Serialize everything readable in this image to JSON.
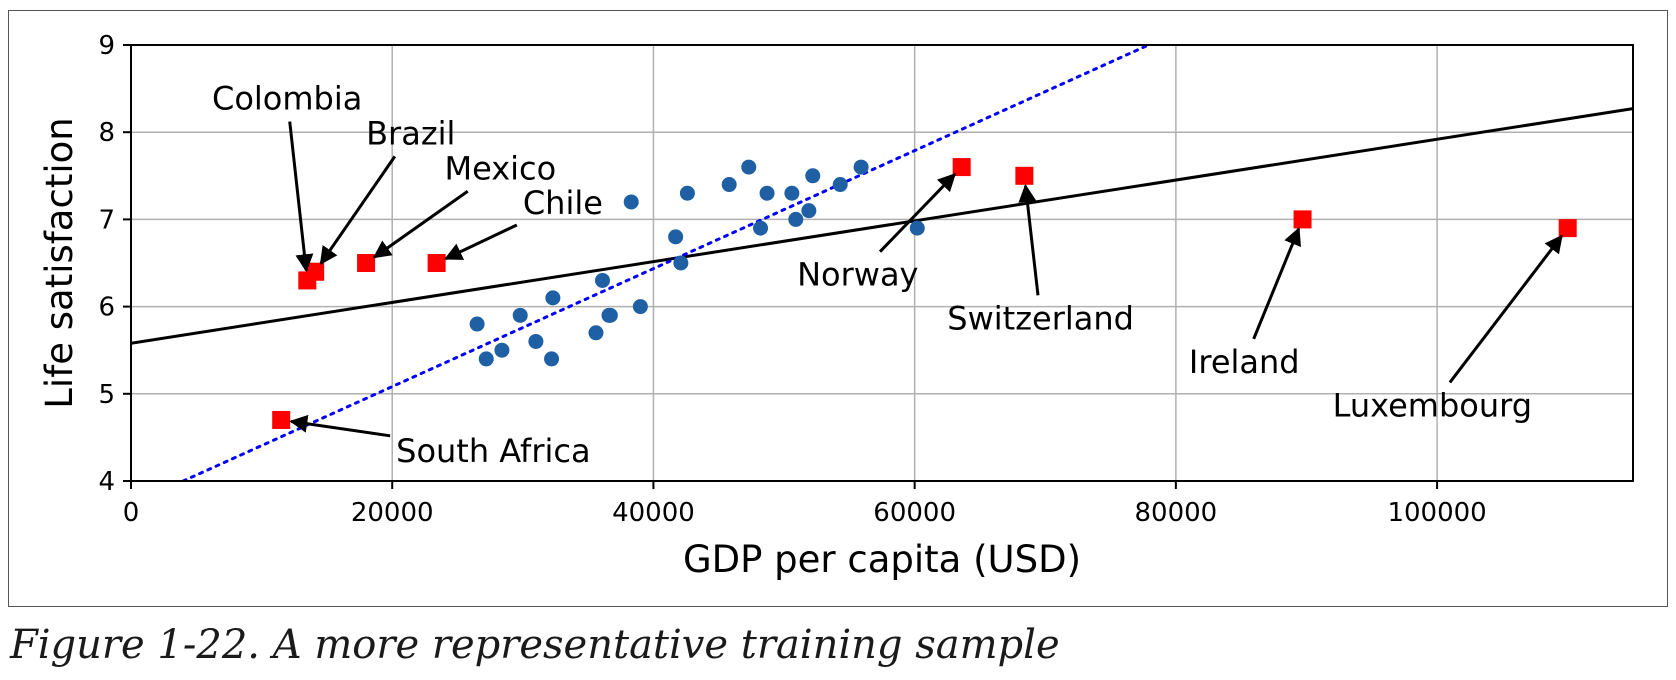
{
  "caption": "Figure 1-22. A more representative training sample",
  "colors": {
    "sample_points": "#1f5fa3",
    "added_points": "#ff0000",
    "full_model_line": "#000000",
    "partial_model_line": "#0000ff",
    "grid": "#b0b0b0"
  },
  "chart_data": {
    "type": "scatter",
    "title": "",
    "xlabel": "GDP per capita (USD)",
    "ylabel": "Life satisfaction",
    "xlim": [
      0,
      115000
    ],
    "ylim": [
      4,
      9
    ],
    "xticks": [
      0,
      20000,
      40000,
      60000,
      80000,
      100000
    ],
    "xtick_labels": [
      "0",
      "20000",
      "40000",
      "60000",
      "80000",
      "100000"
    ],
    "yticks": [
      4,
      5,
      6,
      7,
      8,
      9
    ],
    "ytick_labels": [
      "4",
      "5",
      "6",
      "7",
      "8",
      "9"
    ],
    "grid": true,
    "series": [
      {
        "marker": "circle",
        "color": "#1f5fa3",
        "points": [
          [
            26500,
            5.8
          ],
          [
            27200,
            5.4
          ],
          [
            28400,
            5.5
          ],
          [
            29800,
            5.9
          ],
          [
            31000,
            5.6
          ],
          [
            32200,
            5.4
          ],
          [
            32300,
            6.1
          ],
          [
            35600,
            5.7
          ],
          [
            36100,
            6.3
          ],
          [
            36600,
            5.9
          ],
          [
            36700,
            5.9
          ],
          [
            38300,
            7.2
          ],
          [
            39000,
            6.0
          ],
          [
            41700,
            6.8
          ],
          [
            42100,
            6.5
          ],
          [
            42600,
            7.3
          ],
          [
            45800,
            7.4
          ],
          [
            47300,
            7.6
          ],
          [
            48200,
            6.9
          ],
          [
            48700,
            7.3
          ],
          [
            50600,
            7.3
          ],
          [
            50900,
            7.0
          ],
          [
            51900,
            7.1
          ],
          [
            52200,
            7.5
          ],
          [
            54300,
            7.4
          ],
          [
            55900,
            7.6
          ],
          [
            60200,
            6.9
          ]
        ]
      },
      {
        "marker": "square",
        "color": "#ff0000",
        "points": [
          [
            11500,
            4.7
          ],
          [
            13500,
            6.3
          ],
          [
            14100,
            6.4
          ],
          [
            18000,
            6.5
          ],
          [
            23400,
            6.5
          ],
          [
            63600,
            7.6
          ],
          [
            68400,
            7.5
          ],
          [
            89700,
            7.0
          ],
          [
            110000,
            6.9
          ]
        ]
      }
    ],
    "lines": [
      {
        "style": "solid",
        "color": "#000000",
        "points": [
          [
            0,
            5.58
          ],
          [
            115000,
            8.27
          ]
        ]
      },
      {
        "style": "dotted",
        "color": "#0000ff",
        "points": [
          [
            4000,
            4.0
          ],
          [
            77900,
            9.0
          ]
        ]
      }
    ],
    "annotations": [
      {
        "text": "Colombia",
        "point": [
          13500,
          6.3
        ],
        "text_at": [
          6200,
          8.26
        ]
      },
      {
        "text": "Brazil",
        "point": [
          14100,
          6.4
        ],
        "text_at": [
          18000,
          7.86
        ]
      },
      {
        "text": "Mexico",
        "point": [
          18000,
          6.5
        ],
        "text_at": [
          24000,
          7.46
        ]
      },
      {
        "text": "Chile",
        "point": [
          23400,
          6.5
        ],
        "text_at": [
          30000,
          7.06
        ]
      },
      {
        "text": "South Africa",
        "point": [
          11500,
          4.7
        ],
        "text_at": [
          20300,
          4.22
        ]
      },
      {
        "text": "Norway",
        "point": [
          63600,
          7.6
        ],
        "text_at": [
          51000,
          6.24
        ]
      },
      {
        "text": "Switzerland",
        "point": [
          68400,
          7.5
        ],
        "text_at": [
          62500,
          5.74
        ]
      },
      {
        "text": "Ireland",
        "point": [
          89700,
          7.0
        ],
        "text_at": [
          81000,
          5.24
        ]
      },
      {
        "text": "Luxembourg",
        "point": [
          110000,
          6.9
        ],
        "text_at": [
          92000,
          4.74
        ]
      }
    ]
  }
}
